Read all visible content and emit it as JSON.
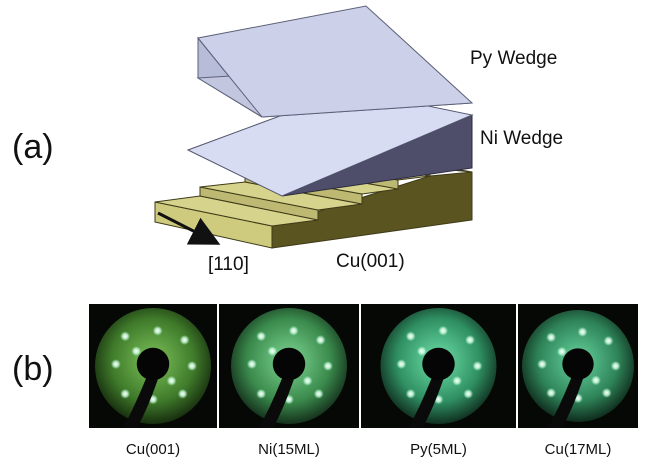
{
  "panel_a": {
    "label": "(a)",
    "layers": {
      "py": "Py Wedge",
      "ni": "Ni Wedge",
      "substrate": "Cu(001)"
    },
    "direction": "[110]"
  },
  "panel_b": {
    "label": "(b)",
    "leed_images": [
      {
        "caption": "Cu(001)",
        "spot_color": "#9fe0a0",
        "screen_color": "#3f7a2a"
      },
      {
        "caption": "Ni(15ML)",
        "spot_color": "#b8f0c8",
        "screen_color": "#3a8a4c"
      },
      {
        "caption": "Py(5ML)",
        "spot_color": "#c8fff0",
        "screen_color": "#2f8f62"
      },
      {
        "caption": "Cu(17ML)",
        "spot_color": "#c0f8e0",
        "screen_color": "#2e8358"
      }
    ]
  },
  "colors": {
    "py_top": "#ccd0e8",
    "py_front": "#b7bcd9",
    "ni_top": "#d7dcf3",
    "ni_side": "#4f4e6a",
    "cu_top": "#d6d38c",
    "cu_side": "#5a5420"
  }
}
